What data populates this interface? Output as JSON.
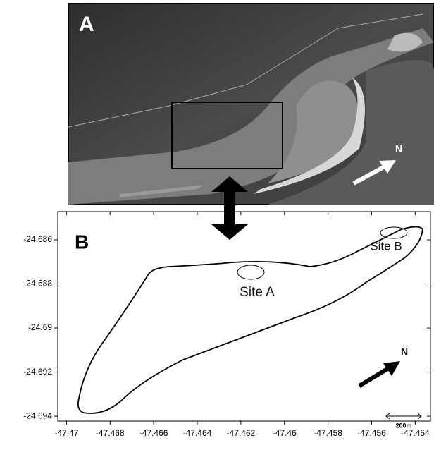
{
  "panel_a": {
    "label": "A",
    "north": "N"
  },
  "panel_b": {
    "label": "B",
    "north": "N",
    "sites": [
      "Site A",
      "Site B"
    ],
    "scale_bar": "200m",
    "xlim": [
      -47.4704,
      -47.4533
    ],
    "xticks": [
      {
        "value": -47.47,
        "label": "-47,47"
      },
      -47.468,
      -47.466,
      -47.464,
      -47.462,
      -47.46,
      -47.458,
      -47.456,
      -47.454
    ],
    "ylim": [
      -24.69422,
      -24.68472
    ],
    "yticks": [
      -24.686,
      -24.688,
      -24.69,
      -24.692,
      -24.694
    ]
  }
}
